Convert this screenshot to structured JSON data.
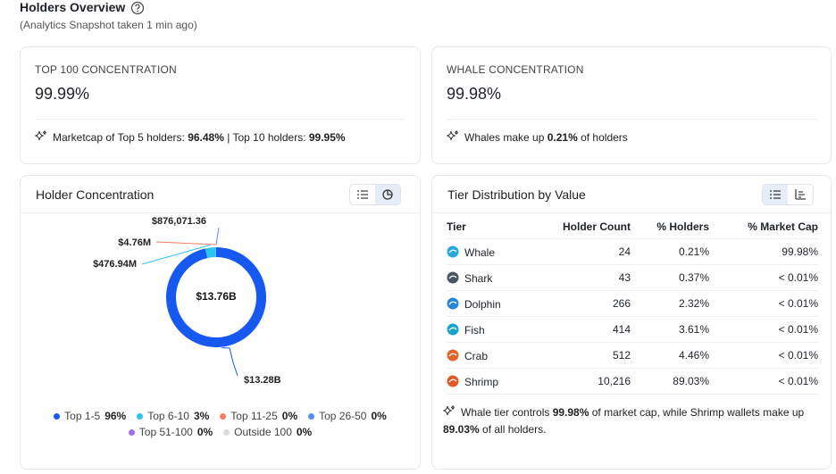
{
  "header": {
    "title": "Holders Overview",
    "subtitle": "(Analytics Snapshot taken 1 min ago)"
  },
  "cards": [
    {
      "label": "TOP 100 CONCENTRATION",
      "value": "99.99%",
      "note": [
        "Marketcap of Top 5 holders: ",
        "96.48%",
        " | Top 10 holders: ",
        "99.95%"
      ]
    },
    {
      "label": "WHALE CONCENTRATION",
      "value": "99.98%",
      "note": [
        "Whales make up ",
        "0.21%",
        " of holders"
      ]
    }
  ],
  "chart_data": {
    "type": "donut",
    "title": "Holder Concentration",
    "center_label": "$13.76B",
    "categories": [
      "Top 1-5",
      "Top 6-10",
      "Top 11-25",
      "Top 26-50",
      "Top 51-100",
      "Outside 100"
    ],
    "values": [
      13280000000,
      476940000,
      4760000,
      876071.36,
      0,
      0
    ],
    "value_labels": [
      "$13.28B",
      "$476.94M",
      "$4.76M",
      "$876,071.36",
      null,
      null
    ],
    "legend_values": [
      "96%",
      "3%",
      "0%",
      "0%",
      "0%",
      "0%"
    ],
    "colors": [
      "#1658f0",
      "#2ec4f2",
      "#f47b64",
      "#5b8def",
      "#a56ef0",
      "#d9dadd"
    ]
  },
  "tiers": {
    "title": "Tier Distribution by Value",
    "columns": [
      "Tier",
      "Holder Count",
      "% Holders",
      "% Market Cap"
    ],
    "rows": [
      [
        "Whale",
        "24",
        "0.21%",
        "99.98%"
      ],
      [
        "Shark",
        "43",
        "0.37%",
        "< 0.01%"
      ],
      [
        "Dolphin",
        "266",
        "2.32%",
        "< 0.01%"
      ],
      [
        "Fish",
        "414",
        "3.61%",
        "< 0.01%"
      ],
      [
        "Crab",
        "512",
        "4.46%",
        "< 0.01%"
      ],
      [
        "Shrimp",
        "10,216",
        "89.03%",
        "< 0.01%"
      ]
    ],
    "note": [
      "Whale tier controls ",
      "99.98%",
      " of market cap, while Shrimp wallets make up ",
      "89.03%",
      " of all holders."
    ]
  }
}
